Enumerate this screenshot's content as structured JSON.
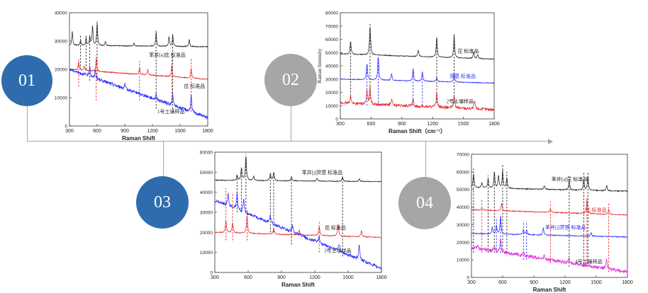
{
  "steps": [
    {
      "label": "01",
      "color": "#2f6cad"
    },
    {
      "label": "02",
      "color": "#a6a6a6"
    },
    {
      "label": "03",
      "color": "#2f6cad"
    },
    {
      "label": "04",
      "color": "#a6a6a6"
    }
  ],
  "colors": {
    "black": "#222222",
    "red": "#e8262b",
    "blue": "#2a2aff",
    "magenta": "#e020e0",
    "connector": "#9aa7b5"
  },
  "chart_data": [
    {
      "type": "line",
      "id": "c1",
      "xlabel": "Raman Shift",
      "ylabel": "",
      "xlim": [
        300,
        1800
      ],
      "ylim": [
        0,
        40000
      ],
      "xticks": [
        300,
        600,
        900,
        1200,
        1500,
        1800
      ],
      "yticks": [
        0,
        10000,
        20000,
        30000,
        40000
      ],
      "series": [
        {
          "name": "苯并[a]芘 标准品",
          "color": "#222222",
          "baseline": 28500,
          "slope": -500,
          "peaks": [
            [
              330,
              5000
            ],
            [
              420,
              1800
            ],
            [
              480,
              2500
            ],
            [
              520,
              3000
            ],
            [
              550,
              7000
            ],
            [
              600,
              8000
            ],
            [
              690,
              1500
            ],
            [
              1000,
              1000
            ],
            [
              1240,
              5000
            ],
            [
              1380,
              3500
            ],
            [
              1420,
              4000
            ],
            [
              1600,
              2500
            ]
          ]
        },
        {
          "name": "芘 标准品",
          "color": "#e8262b",
          "baseline": 20000,
          "slope": -3500,
          "peaks": [
            [
              400,
              3000
            ],
            [
              460,
              1500
            ],
            [
              590,
              4500
            ],
            [
              1060,
              2500
            ],
            [
              1150,
              2000
            ],
            [
              1410,
              4000
            ],
            [
              1620,
              3500
            ]
          ]
        },
        {
          "name": "1号土壤样品",
          "color": "#2a2aff",
          "baseline": 20000,
          "slope": -17000,
          "noise": true,
          "peaks": [
            [
              520,
              4000
            ],
            [
              580,
              3000
            ],
            [
              900,
              1500
            ],
            [
              1240,
              2000
            ],
            [
              1420,
              4000
            ],
            [
              1620,
              6000
            ]
          ]
        }
      ],
      "vlines": [
        {
          "x": 420,
          "color": "#222222",
          "from": 20000,
          "to": 32000
        },
        {
          "x": 480,
          "color": "#222222",
          "from": 20000,
          "to": 32000
        },
        {
          "x": 520,
          "color": "#222222",
          "from": 16000,
          "to": 32000
        },
        {
          "x": 600,
          "color": "#222222",
          "from": 16000,
          "to": 37000
        },
        {
          "x": 1240,
          "color": "#222222",
          "from": 6000,
          "to": 34000
        },
        {
          "x": 1420,
          "color": "#222222",
          "from": 6000,
          "to": 33000
        },
        {
          "x": 400,
          "color": "#e8262b",
          "from": 14000,
          "to": 24000
        },
        {
          "x": 590,
          "color": "#e8262b",
          "from": 9000,
          "to": 25000
        },
        {
          "x": 1060,
          "color": "#e8262b",
          "from": 9000,
          "to": 23000
        },
        {
          "x": 1410,
          "color": "#e8262b",
          "from": 8000,
          "to": 25000
        },
        {
          "x": 1620,
          "color": "#e8262b",
          "from": 5000,
          "to": 24000
        }
      ],
      "labels": [
        {
          "text": "苯并[a]芘 标准品",
          "x": 1560,
          "y": 24500,
          "color": "#222222"
        },
        {
          "text": "芘 标准品",
          "x": 1770,
          "y": 13500,
          "color": "#222222"
        },
        {
          "text": "1号土壤样品",
          "x": 1550,
          "y": 4500,
          "color": "#222222"
        }
      ]
    },
    {
      "type": "line",
      "id": "c2",
      "xlabel": "Raman Shift（cm⁻¹）",
      "ylabel": "Raman Intensity",
      "xlim": [
        300,
        1800
      ],
      "ylim": [
        0,
        80000
      ],
      "xticks": [
        300,
        600,
        900,
        1200,
        1500,
        1800
      ],
      "yticks": [
        0,
        10000,
        20000,
        30000,
        40000,
        50000,
        60000,
        70000,
        80000
      ],
      "series": [
        {
          "name": "芘 标准品",
          "color": "#222222",
          "baseline": 49000,
          "slope": -4000,
          "peaks": [
            [
              400,
              10000
            ],
            [
              590,
              22000
            ],
            [
              1060,
              5000
            ],
            [
              1240,
              15000
            ],
            [
              1410,
              17000
            ],
            [
              1600,
              5000
            ],
            [
              1640,
              3000
            ]
          ]
        },
        {
          "name": "荧蒽 标准品",
          "color": "#2a2aff",
          "baseline": 30000,
          "slope": -3000,
          "peaks": [
            [
              560,
              12000
            ],
            [
              670,
              18000
            ],
            [
              800,
              5000
            ],
            [
              1010,
              9000
            ],
            [
              1100,
              7000
            ],
            [
              1240,
              3000
            ],
            [
              1410,
              7000
            ]
          ]
        },
        {
          "name": "2号土壤样品",
          "color": "#e8262b",
          "baseline": 12000,
          "slope": -5000,
          "noise": true,
          "peaks": [
            [
              400,
              6000
            ],
            [
              560,
              10000
            ],
            [
              590,
              14000
            ],
            [
              800,
              5000
            ],
            [
              1010,
              5000
            ],
            [
              1240,
              12000
            ],
            [
              1410,
              10000
            ],
            [
              1610,
              6000
            ]
          ]
        }
      ],
      "vlines": [
        {
          "x": 400,
          "color": "#222222",
          "from": 15000,
          "to": 58000
        },
        {
          "x": 590,
          "color": "#222222",
          "from": 15000,
          "to": 72000
        },
        {
          "x": 1240,
          "color": "#222222",
          "from": 12000,
          "to": 62000
        },
        {
          "x": 1410,
          "color": "#222222",
          "from": 12000,
          "to": 64000
        },
        {
          "x": 560,
          "color": "#2a2aff",
          "from": 10000,
          "to": 40000
        },
        {
          "x": 670,
          "color": "#2a2aff",
          "from": 10000,
          "to": 46000
        },
        {
          "x": 1010,
          "color": "#2a2aff",
          "from": 10000,
          "to": 38000
        },
        {
          "x": 1100,
          "color": "#2a2aff",
          "from": 10000,
          "to": 36000
        }
      ],
      "labels": [
        {
          "text": "芘 标准品",
          "x": 1650,
          "y": 50000,
          "color": "#222222"
        },
        {
          "text": "荧蒽 标准品",
          "x": 1620,
          "y": 31000,
          "color": "#2a2aff"
        },
        {
          "text": "2号土壤样品",
          "x": 1600,
          "y": 12000,
          "color": "#222222"
        }
      ]
    },
    {
      "type": "line",
      "id": "c3",
      "xlabel": "Raman Shift",
      "ylabel": "",
      "xlim": [
        300,
        1800
      ],
      "ylim": [
        0,
        60000
      ],
      "xticks": [
        300,
        600,
        900,
        1200,
        1500,
        1800
      ],
      "yticks": [
        0,
        10000,
        20000,
        30000,
        40000,
        50000,
        60000
      ],
      "series": [
        {
          "name": "苯并[j]荧蒽 标准品",
          "color": "#222222",
          "baseline": 46000,
          "slope": -700,
          "peaks": [
            [
              500,
              2500
            ],
            [
              540,
              6000
            ],
            [
              580,
              12000
            ],
            [
              650,
              2000
            ],
            [
              800,
              3500
            ],
            [
              830,
              4000
            ],
            [
              990,
              2000
            ],
            [
              1220,
              1500
            ],
            [
              1450,
              2000
            ],
            [
              1600,
              1500
            ]
          ]
        },
        {
          "name": "芘 标准品",
          "color": "#e8262b",
          "baseline": 20000,
          "slope": -2500,
          "peaks": [
            [
              400,
              6000
            ],
            [
              460,
              5000
            ],
            [
              590,
              9000
            ],
            [
              830,
              3000
            ],
            [
              1060,
              2500
            ],
            [
              1240,
              4500
            ],
            [
              1410,
              6000
            ],
            [
              1620,
              3000
            ]
          ]
        },
        {
          "name": "3号土壤样品",
          "color": "#2a2aff",
          "baseline": 36000,
          "slope": -34000,
          "noise": true,
          "peaks": [
            [
              420,
              6000
            ],
            [
              500,
              8000
            ],
            [
              560,
              6000
            ],
            [
              800,
              4000
            ],
            [
              1000,
              3000
            ],
            [
              1240,
              3000
            ],
            [
              1420,
              4000
            ],
            [
              1600,
              8000
            ]
          ]
        }
      ],
      "vlines": [
        {
          "x": 500,
          "color": "#222222",
          "from": 30000,
          "to": 49000
        },
        {
          "x": 540,
          "color": "#222222",
          "from": 30000,
          "to": 52000
        },
        {
          "x": 580,
          "color": "#222222",
          "from": 30000,
          "to": 59000
        },
        {
          "x": 800,
          "color": "#222222",
          "from": 20000,
          "to": 50000
        },
        {
          "x": 830,
          "color": "#222222",
          "from": 20000,
          "to": 50000
        },
        {
          "x": 990,
          "color": "#222222",
          "from": 14000,
          "to": 48000
        },
        {
          "x": 1450,
          "color": "#222222",
          "from": 8000,
          "to": 48000
        },
        {
          "x": 400,
          "color": "#e8262b",
          "from": 16000,
          "to": 42000
        },
        {
          "x": 460,
          "color": "#e8262b",
          "from": 16000,
          "to": 40000
        },
        {
          "x": 590,
          "color": "#e8262b",
          "from": 16000,
          "to": 31000
        },
        {
          "x": 1240,
          "color": "#e8262b",
          "from": 10000,
          "to": 26000
        }
      ],
      "labels": [
        {
          "text": "苯并[j]荧蒽 标准品",
          "x": 1450,
          "y": 49000,
          "color": "#222222"
        },
        {
          "text": "芘 标准品",
          "x": 1480,
          "y": 21500,
          "color": "#222222"
        },
        {
          "text": "3号土壤样品",
          "x": 1530,
          "y": 10000,
          "color": "#222222"
        }
      ]
    },
    {
      "type": "line",
      "id": "c4",
      "xlabel": "Raman Shift",
      "ylabel": "",
      "xlim": [
        300,
        1800
      ],
      "ylim": [
        0,
        70000
      ],
      "xticks": [
        300,
        600,
        900,
        1200,
        1500,
        1800
      ],
      "yticks": [
        0,
        10000,
        20000,
        30000,
        40000,
        50000,
        60000,
        70000
      ],
      "series": [
        {
          "name": "苯并[a]芘 标准品",
          "color": "#222222",
          "baseline": 51000,
          "slope": -2000,
          "peaks": [
            [
              320,
              8000
            ],
            [
              400,
              3000
            ],
            [
              460,
              5000
            ],
            [
              520,
              9000
            ],
            [
              560,
              7000
            ],
            [
              600,
              10000
            ],
            [
              640,
              6000
            ],
            [
              1000,
              2000
            ],
            [
              1240,
              5000
            ],
            [
              1380,
              6000
            ],
            [
              1420,
              8000
            ],
            [
              1600,
              3000
            ]
          ]
        },
        {
          "name": "芘 标准品",
          "color": "#e8262b",
          "baseline": 38500,
          "slope": -3000,
          "peaks": [
            [
              400,
              1500
            ],
            [
              590,
              4000
            ],
            [
              1060,
              2000
            ],
            [
              1410,
              8000
            ],
            [
              1620,
              3000
            ]
          ]
        },
        {
          "name": "苯并[j]荧蒽 标准品",
          "color": "#2a2aff",
          "baseline": 25000,
          "slope": -2000,
          "peaks": [
            [
              500,
              3500
            ],
            [
              540,
              5000
            ],
            [
              580,
              10000
            ],
            [
              800,
              3000
            ],
            [
              830,
              2500
            ],
            [
              990,
              4000
            ],
            [
              1450,
              2000
            ]
          ]
        },
        {
          "name": "4号土壤样品",
          "color": "#e020e0",
          "baseline": 17000,
          "slope": -14000,
          "noise": true,
          "peaks": [
            [
              360,
              2000
            ],
            [
              520,
              3000
            ],
            [
              580,
              8000
            ],
            [
              800,
              3000
            ],
            [
              1000,
              2000
            ],
            [
              1240,
              3000
            ],
            [
              1420,
              3000
            ],
            [
              1600,
              5000
            ]
          ]
        }
      ],
      "vlines": [
        {
          "x": 320,
          "color": "#222222",
          "from": 14000,
          "to": 62000
        },
        {
          "x": 460,
          "color": "#222222",
          "from": 14000,
          "to": 58000
        },
        {
          "x": 520,
          "color": "#222222",
          "from": 14000,
          "to": 60000
        },
        {
          "x": 600,
          "color": "#222222",
          "from": 14000,
          "to": 64000
        },
        {
          "x": 640,
          "color": "#222222",
          "from": 14000,
          "to": 60000
        },
        {
          "x": 1240,
          "color": "#222222",
          "from": 6000,
          "to": 58000
        },
        {
          "x": 1380,
          "color": "#222222",
          "from": 6000,
          "to": 60000
        },
        {
          "x": 1420,
          "color": "#222222",
          "from": 6000,
          "to": 60000
        },
        {
          "x": 400,
          "color": "#e8262b",
          "from": 14000,
          "to": 44000
        },
        {
          "x": 1060,
          "color": "#e8262b",
          "from": 8000,
          "to": 43000
        },
        {
          "x": 1410,
          "color": "#e8262b",
          "from": 6000,
          "to": 46000
        },
        {
          "x": 1620,
          "color": "#e8262b",
          "from": 3000,
          "to": 42000
        },
        {
          "x": 540,
          "color": "#2a2aff",
          "from": 14000,
          "to": 34000
        },
        {
          "x": 580,
          "color": "#2a2aff",
          "from": 14000,
          "to": 36000
        },
        {
          "x": 800,
          "color": "#2a2aff",
          "from": 10000,
          "to": 32000
        },
        {
          "x": 830,
          "color": "#2a2aff",
          "from": 10000,
          "to": 32000
        }
      ],
      "labels": [
        {
          "text": "苯并[a]芘 标准品",
          "x": 1420,
          "y": 55000,
          "color": "#222222"
        },
        {
          "text": "芘 标准品",
          "x": 1600,
          "y": 37500,
          "color": "#e8262b"
        },
        {
          "text": "苯并[j]荧蒽 标准品",
          "x": 1400,
          "y": 27500,
          "color": "#2a2aff"
        },
        {
          "text": "4号土壤样品",
          "x": 1560,
          "y": 8000,
          "color": "#222222"
        }
      ]
    }
  ]
}
